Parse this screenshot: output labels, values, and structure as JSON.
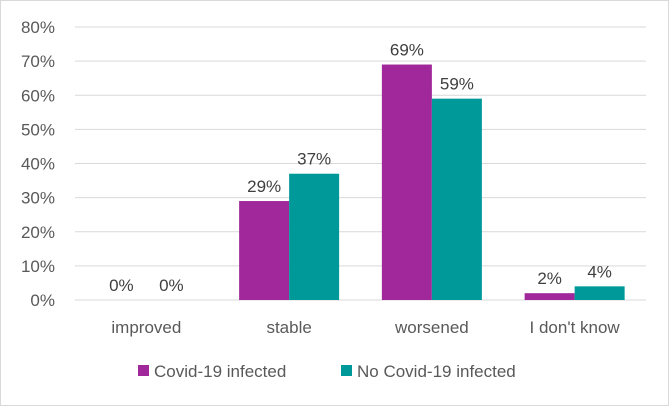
{
  "chart_data": {
    "type": "bar",
    "title": "",
    "xlabel": "",
    "ylabel": "",
    "categories": [
      "improved",
      "stable",
      "worsened",
      "I don't know"
    ],
    "series": [
      {
        "name": "Covid-19 infected",
        "color": "#A0289A",
        "values": [
          0,
          29,
          69,
          2
        ],
        "labels": [
          "0%",
          "29%",
          "69%",
          "2%"
        ]
      },
      {
        "name": "No Covid-19 infected",
        "color": "#009999",
        "values": [
          0,
          37,
          59,
          4
        ],
        "labels": [
          "0%",
          "37%",
          "59%",
          "4%"
        ]
      }
    ],
    "ylim": [
      0,
      80
    ],
    "yticks": [
      0,
      10,
      20,
      30,
      40,
      50,
      60,
      70,
      80
    ],
    "ytick_labels": [
      "0%",
      "10%",
      "20%",
      "30%",
      "40%",
      "50%",
      "60%",
      "70%",
      "80%"
    ],
    "grid": true,
    "gridline_color": "#d9d9d9",
    "legend_position": "bottom"
  }
}
